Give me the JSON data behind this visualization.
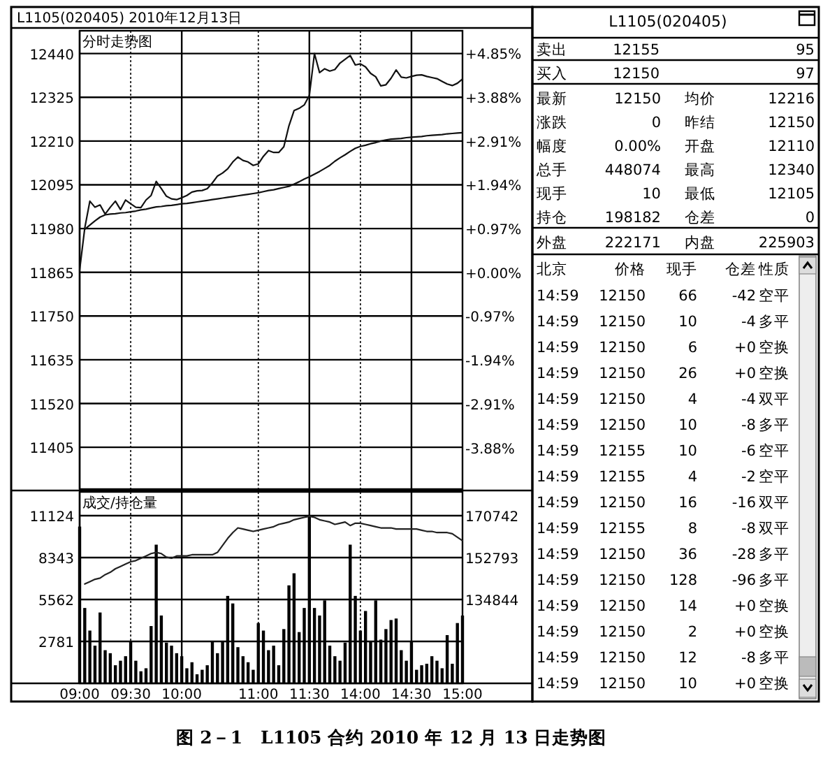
{
  "chart_data": [
    {
      "type": "line",
      "title": "L1105(020405) 2010年12月13日",
      "subtitle": "分时走势图",
      "categories": [
        null,
        null,
        null,
        null,
        null,
        null,
        null,
        null,
        null,
        null,
        null,
        null,
        null,
        null,
        null,
        null,
        null,
        null,
        null,
        null,
        null,
        null,
        null,
        null,
        null,
        null,
        null,
        null,
        null,
        null,
        null,
        null,
        null,
        null,
        null,
        null,
        null,
        null,
        null,
        null,
        null,
        null,
        null,
        null,
        null,
        null,
        null,
        null,
        null,
        null,
        null,
        null,
        null,
        null,
        null,
        null,
        null,
        null,
        null,
        null,
        null,
        null,
        null,
        null,
        null,
        null,
        null,
        null,
        null,
        null,
        null,
        null,
        null,
        null,
        null,
        null
      ],
      "ylim": [
        11295,
        12500
      ],
      "yticks": [
        11405,
        11520,
        11635,
        11750,
        11865,
        11980,
        12095,
        12210,
        12325,
        12440
      ],
      "y2lim": [
        -4.8,
        5.35
      ],
      "y2ticks": [
        {
          "value": -3.88,
          "label": "-3.88%"
        },
        {
          "value": -2.91,
          "label": "-2.91%"
        },
        {
          "value": -1.94,
          "label": "-1.94%"
        },
        {
          "value": -0.97,
          "label": "-0.97%"
        },
        {
          "value": 0,
          "label": "+0.00%"
        },
        {
          "value": 0.97,
          "label": "+0.97%"
        },
        {
          "value": 1.94,
          "label": "+1.94%"
        },
        {
          "value": 2.91,
          "label": "+2.91%"
        },
        {
          "value": 3.88,
          "label": "+3.88%"
        },
        {
          "value": 4.85,
          "label": "+4.85%"
        }
      ],
      "grid": true,
      "tick_labels": "y",
      "annotations": [
        "图 2－1　L1105 合约 2010 年 12 月 13 日走势图"
      ],
      "series": [
        {
          "color": "#111111",
          "values": [
            11871,
            11981,
            12052,
            12036,
            12042,
            12018,
            12036,
            12052,
            12030,
            12055,
            12045,
            12036,
            12035,
            12055,
            12067,
            12104,
            12085,
            12065,
            12058,
            12056,
            12061,
            12067,
            12076,
            12079,
            12080,
            12085,
            12100,
            12118,
            12126,
            12137,
            12155,
            12168,
            12159,
            12155,
            12146,
            12150,
            12170,
            12185,
            12180,
            12180,
            12195,
            12250,
            12290,
            12296,
            12305,
            12330,
            12440,
            12390,
            12400,
            12394,
            12398,
            12415,
            12425,
            12435,
            12410,
            12413,
            12405,
            12388,
            12379,
            12355,
            12358,
            12375,
            12397,
            12378,
            12376,
            12380,
            12383,
            12384,
            12380,
            12377,
            12374,
            12367,
            12360,
            12356,
            12362,
            12373
          ]
        },
        {
          "color": "#111111",
          "values": [
            null,
            11978,
            11989,
            12000,
            12010,
            12016,
            12018,
            12019,
            12021,
            12022,
            12024,
            12026,
            12029,
            12031,
            12034,
            12037,
            12038,
            12040,
            12041,
            12043,
            12045,
            12046,
            12048,
            12050,
            12052,
            12054,
            12056,
            12058,
            12060,
            12062,
            12064,
            12066,
            12068,
            12070,
            12072,
            12074,
            12077,
            12080,
            12082,
            12085,
            12088,
            12091,
            12097,
            12103,
            12110,
            12116,
            12123,
            12130,
            12138,
            12146,
            12157,
            12166,
            12174,
            12183,
            12191,
            12196,
            12199,
            12203,
            12206,
            12210,
            12213,
            12215,
            12216,
            12217,
            12219,
            12220,
            12221,
            12222,
            12224,
            12225,
            12226,
            12227,
            12229,
            12230,
            12231,
            12232
          ]
        }
      ]
    },
    {
      "type": "bar",
      "title": "成交/持仓量",
      "categories": [
        "09:00",
        null,
        null,
        null,
        null,
        null,
        null,
        null,
        null,
        null,
        "09:30",
        null,
        null,
        null,
        null,
        null,
        null,
        null,
        null,
        null,
        "10:00",
        null,
        null,
        null,
        null,
        null,
        null,
        null,
        null,
        null,
        null,
        null,
        null,
        null,
        null,
        "11:00",
        null,
        null,
        null,
        null,
        null,
        null,
        null,
        null,
        null,
        "11:30",
        null,
        null,
        null,
        null,
        null,
        null,
        null,
        null,
        null,
        "14:00",
        null,
        null,
        null,
        null,
        null,
        null,
        null,
        null,
        null,
        "14:30",
        null,
        null,
        null,
        null,
        null,
        null,
        null,
        null,
        null,
        "15:00"
      ],
      "ylim": [
        0,
        12700
      ],
      "yticks": [
        2781,
        5562,
        8343,
        11124
      ],
      "y2lim": [
        98946,
        180914
      ],
      "y2ticks": [
        134844,
        152793,
        170742
      ],
      "grid": true,
      "series": [
        {
          "color": "#000000",
          "values": [
            10400,
            5000,
            3500,
            2500,
            4700,
            2200,
            2000,
            1200,
            1500,
            1800,
            2800,
            1500,
            800,
            1000,
            3800,
            9200,
            4500,
            2700,
            2500,
            2000,
            1800,
            1000,
            1400,
            600,
            900,
            1200,
            2800,
            2000,
            2800,
            5800,
            5300,
            2400,
            1800,
            1400,
            900,
            4000,
            3500,
            2200,
            2500,
            1200,
            3600,
            6500,
            7300,
            3400,
            5000,
            11100,
            5000,
            4500,
            5500,
            2500,
            1800,
            1500,
            2700,
            9200,
            5800,
            3500,
            4800,
            2800,
            5500,
            2900,
            3600,
            4200,
            4300,
            2200,
            1500,
            2800,
            900,
            1200,
            1300,
            1800,
            1500,
            1000,
            3200,
            1300,
            4000,
            4500
          ]
        },
        {
          "type": "line",
          "axis": "y2",
          "color": "#222222",
          "values": [
            null,
            141500,
            142500,
            143500,
            144000,
            145500,
            146500,
            148000,
            149000,
            150000,
            151000,
            151500,
            152500,
            153500,
            154500,
            155000,
            154500,
            153000,
            152500,
            153500,
            153500,
            153500,
            154000,
            154000,
            154000,
            154000,
            154000,
            155000,
            158000,
            161000,
            163500,
            165500,
            165000,
            164500,
            164000,
            164500,
            165000,
            165500,
            166000,
            167000,
            167500,
            168000,
            169000,
            169500,
            170000,
            170500,
            170000,
            169000,
            168500,
            168000,
            167000,
            167500,
            168000,
            166500,
            167500,
            167500,
            167000,
            166500,
            166000,
            165500,
            165500,
            165500,
            165000,
            165000,
            165000,
            165000,
            165000,
            164500,
            164000,
            164000,
            163500,
            163500,
            163500,
            163000,
            161500,
            160000
          ]
        }
      ]
    },
    {
      "type": "other",
      "title": "L1105(020405)",
      "annotations": [
        "卖出",
        "12155",
        "95",
        "买入",
        "12150",
        "97",
        "最新",
        "12150",
        "均价",
        "12216",
        "涨跌",
        "0",
        "昨结",
        "12150",
        "幅度",
        "0.00%",
        "开盘",
        "12110",
        "总手",
        "448074",
        "最高",
        "12340",
        "现手",
        "10",
        "最低",
        "12105",
        "持仓",
        "198182",
        "仓差",
        "0",
        "外盘",
        "222171",
        "内盘",
        "225903",
        "北京",
        "价格",
        "现手",
        "仓差",
        "性质",
        "14:59",
        "12150",
        "66",
        "-42",
        "空平",
        "14:59",
        "12150",
        "10",
        "-4",
        "多平",
        "14:59",
        "12150",
        "6",
        "+0",
        "空换",
        "14:59",
        "12150",
        "26",
        "+0",
        "空换",
        "14:59",
        "12150",
        "4",
        "-4",
        "双平",
        "14:59",
        "12150",
        "10",
        "-8",
        "多平",
        "14:59",
        "12155",
        "10",
        "-6",
        "空平",
        "14:59",
        "12155",
        "4",
        "-2",
        "空平",
        "14:59",
        "12150",
        "16",
        "-16",
        "双平",
        "14:59",
        "12155",
        "8",
        "-8",
        "双平",
        "14:59",
        "12150",
        "36",
        "-28",
        "多平",
        "14:59",
        "12150",
        "128",
        "-96",
        "多平",
        "14:59",
        "12150",
        "14",
        "+0",
        "空换",
        "14:59",
        "12150",
        "2",
        "+0",
        "空换",
        "14:59",
        "12150",
        "12",
        "-8",
        "多平",
        "14:59",
        "12150",
        "10",
        "+0",
        "空换"
      ]
    }
  ]
}
